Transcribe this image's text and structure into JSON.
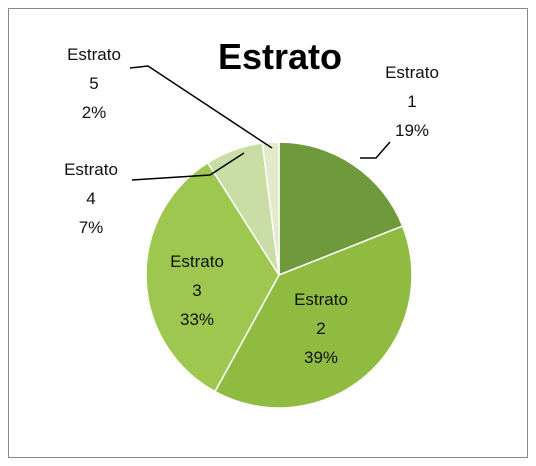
{
  "chart_data": {
    "type": "pie",
    "title": "Estrato",
    "categories": [
      "Estrato 1",
      "Estrato 2",
      "Estrato 3",
      "Estrato 4",
      "Estrato 5"
    ],
    "values": [
      19,
      39,
      33,
      7,
      2
    ],
    "value_labels": [
      "19%",
      "39%",
      "33%",
      "7%",
      "2%"
    ],
    "colors": [
      "#6f9a3b",
      "#8fbc40",
      "#9dc74f",
      "#c9dda4",
      "#e1ebcb"
    ]
  }
}
